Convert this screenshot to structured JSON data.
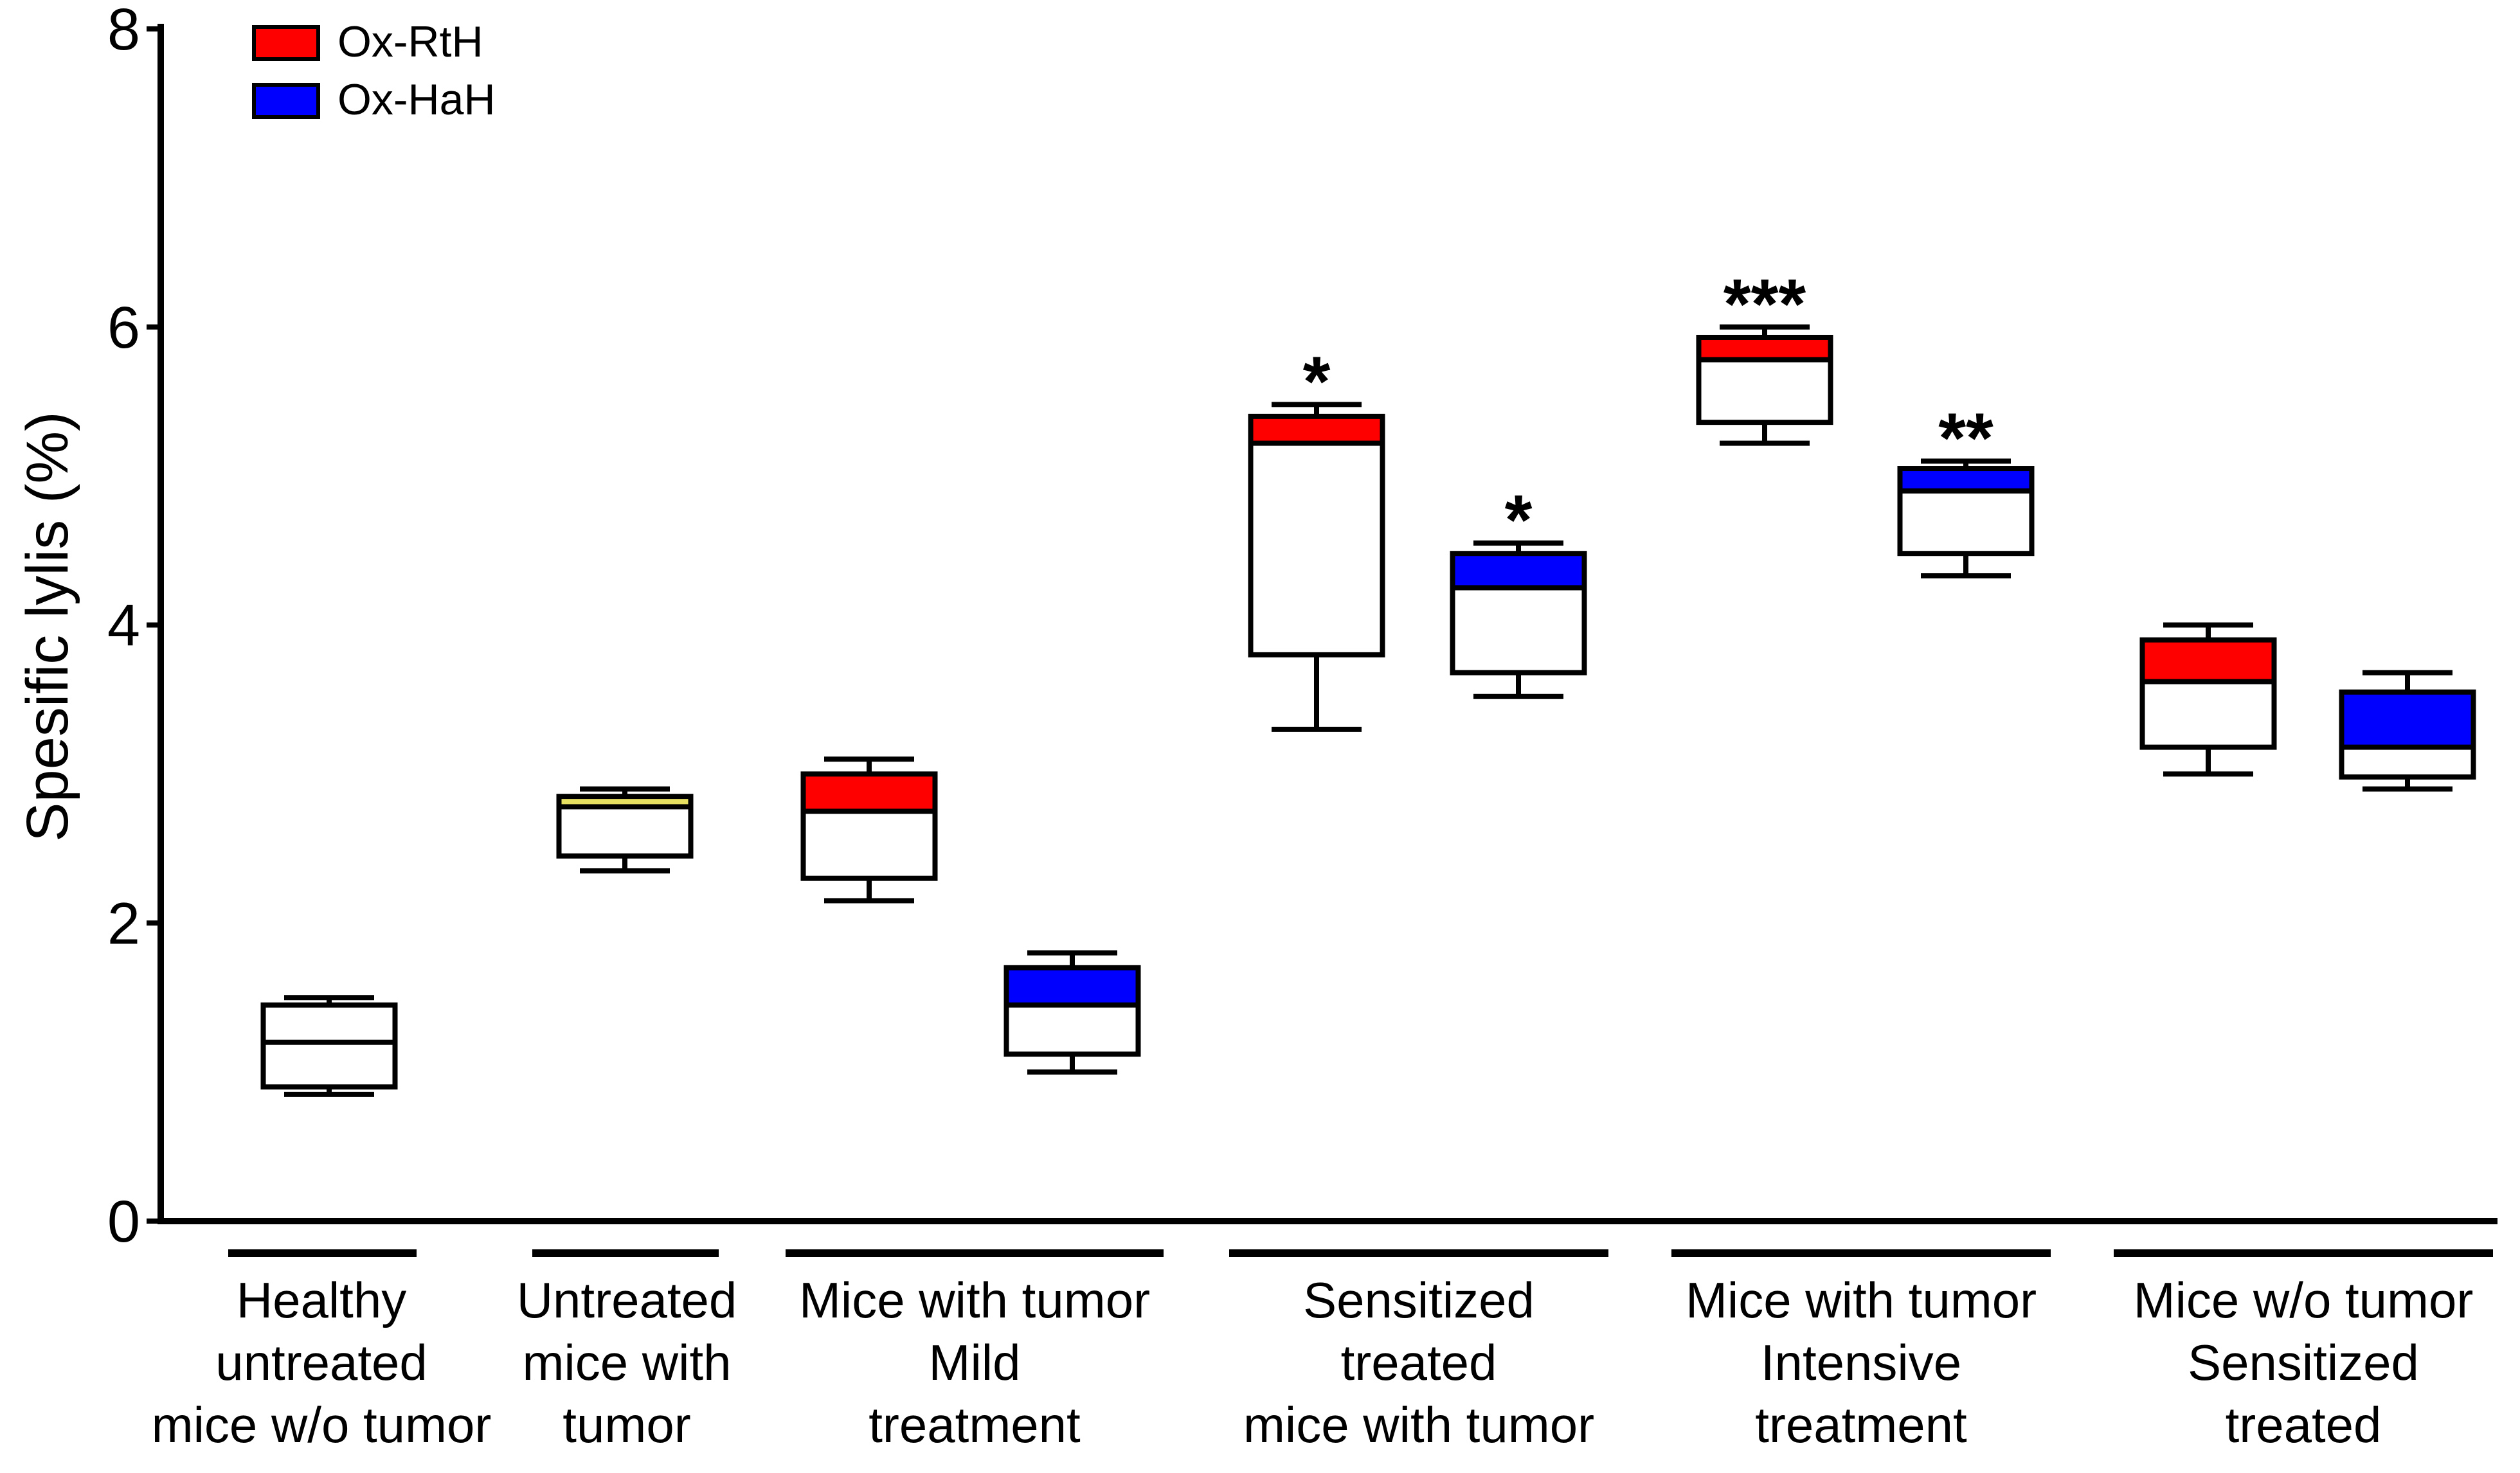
{
  "chart_data": {
    "type": "box",
    "title": "",
    "xlabel": "",
    "ylabel": "Spesific lylis (%)",
    "ylim": [
      0,
      8
    ],
    "yticks": [
      "0",
      "2",
      "4",
      "6",
      "8"
    ],
    "grid": false,
    "legend": {
      "position": "top-left",
      "entries": [
        {
          "name": "Ox-RtH",
          "color": "#ff0000"
        },
        {
          "name": "Ox-HaH",
          "color": "#0000ff"
        }
      ]
    },
    "groups": [
      {
        "lines": [
          "Healthy",
          "untreated",
          "mice w/o tumor"
        ]
      },
      {
        "lines": [
          "Untreated",
          "mice with",
          "tumor"
        ]
      },
      {
        "lines": [
          "Mice with tumor",
          "Mild",
          "treatment"
        ]
      },
      {
        "lines": [
          "Sensitized",
          "treated",
          "mice with tumor"
        ]
      },
      {
        "lines": [
          "Mice with tumor",
          "Intensive",
          "treatment"
        ]
      },
      {
        "lines": [
          "Mice w/o tumor",
          "Sensitized",
          "treated"
        ]
      }
    ],
    "boxes": [
      {
        "group": 0,
        "series": "none",
        "fill": "#ffffff",
        "min": 0.85,
        "q1": 0.9,
        "median": 1.2,
        "q3": 1.45,
        "max": 1.5,
        "sig": ""
      },
      {
        "group": 1,
        "series": "none",
        "fill": "#e8e060",
        "min": 2.35,
        "q1": 2.45,
        "median": 2.78,
        "q3": 2.85,
        "max": 2.9,
        "sig": ""
      },
      {
        "group": 2,
        "series": "Ox-RtH",
        "fill": "#ff0000",
        "min": 2.15,
        "q1": 2.3,
        "median": 2.75,
        "q3": 3.0,
        "max": 3.1,
        "sig": ""
      },
      {
        "group": 2,
        "series": "Ox-HaH",
        "fill": "#0000ff",
        "min": 1.0,
        "q1": 1.12,
        "median": 1.45,
        "q3": 1.7,
        "max": 1.8,
        "sig": ""
      },
      {
        "group": 3,
        "series": "Ox-RtH",
        "fill": "#ff0000",
        "min": 3.3,
        "q1": 3.8,
        "median": 5.22,
        "q3": 5.4,
        "max": 5.48,
        "sig": "*"
      },
      {
        "group": 3,
        "series": "Ox-HaH",
        "fill": "#0000ff",
        "min": 3.52,
        "q1": 3.68,
        "median": 4.25,
        "q3": 4.48,
        "max": 4.55,
        "sig": "*"
      },
      {
        "group": 4,
        "series": "Ox-RtH",
        "fill": "#ff0000",
        "min": 5.22,
        "q1": 5.36,
        "median": 5.78,
        "q3": 5.93,
        "max": 6.0,
        "sig": "***"
      },
      {
        "group": 4,
        "series": "Ox-HaH",
        "fill": "#0000ff",
        "min": 4.33,
        "q1": 4.48,
        "median": 4.9,
        "q3": 5.05,
        "max": 5.1,
        "sig": "**"
      },
      {
        "group": 5,
        "series": "Ox-RtH",
        "fill": "#ff0000",
        "min": 3.0,
        "q1": 3.18,
        "median": 3.62,
        "q3": 3.9,
        "max": 4.0,
        "sig": ""
      },
      {
        "group": 5,
        "series": "Ox-HaH",
        "fill": "#0000ff",
        "min": 2.9,
        "q1": 2.98,
        "median": 3.18,
        "q3": 3.55,
        "max": 3.68,
        "sig": ""
      }
    ]
  }
}
